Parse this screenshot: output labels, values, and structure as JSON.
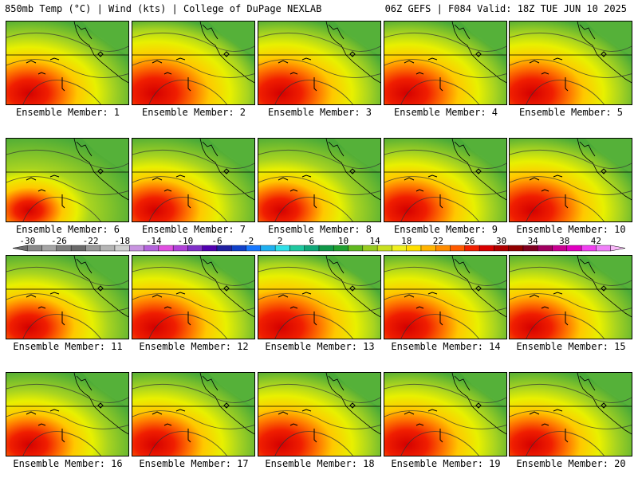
{
  "header": {
    "left": "850mb Temp (°C) | Wind (kts) | College of DuPage NEXLAB",
    "right": "06Z GEFS | F084 Valid: 18Z TUE JUN 10 2025"
  },
  "panels": [
    {
      "label": "Ensemble Member: 1",
      "heat": 0.8
    },
    {
      "label": "Ensemble Member: 2",
      "heat": 0.9
    },
    {
      "label": "Ensemble Member: 3",
      "heat": 0.85
    },
    {
      "label": "Ensemble Member: 4",
      "heat": 0.85
    },
    {
      "label": "Ensemble Member: 5",
      "heat": 0.85
    },
    {
      "label": "Ensemble Member: 6",
      "heat": 0.55
    },
    {
      "label": "Ensemble Member: 7",
      "heat": 0.75
    },
    {
      "label": "Ensemble Member: 8",
      "heat": 0.7
    },
    {
      "label": "Ensemble Member: 9",
      "heat": 0.8
    },
    {
      "label": "Ensemble Member: 10",
      "heat": 0.85
    },
    {
      "label": "Ensemble Member: 11",
      "heat": 0.75
    },
    {
      "label": "Ensemble Member: 12",
      "heat": 0.85
    },
    {
      "label": "Ensemble Member: 13",
      "heat": 0.9
    },
    {
      "label": "Ensemble Member: 14",
      "heat": 0.85
    },
    {
      "label": "Ensemble Member: 15",
      "heat": 0.8
    },
    {
      "label": "Ensemble Member: 16",
      "heat": 0.75
    },
    {
      "label": "Ensemble Member: 17",
      "heat": 0.8
    },
    {
      "label": "Ensemble Member: 18",
      "heat": 0.85
    },
    {
      "label": "Ensemble Member: 19",
      "heat": 0.85
    },
    {
      "label": "Ensemble Member: 20",
      "heat": 0.8
    }
  ],
  "colorbar": {
    "tick_labels": [
      "-30",
      "-26",
      "-22",
      "-18",
      "-14",
      "-10",
      "-6",
      "-2",
      "2",
      "6",
      "10",
      "14",
      "18",
      "22",
      "26",
      "30",
      "34",
      "38",
      "42"
    ],
    "colors": [
      "#6e6e6e",
      "#8a8a8a",
      "#a5a5a5",
      "#7f7f7f",
      "#6a6a6a",
      "#9a9a9a",
      "#b5b5b5",
      "#d0d0d0",
      "#c894e0",
      "#b464dc",
      "#e050e0",
      "#b040d8",
      "#8030c8",
      "#5000b0",
      "#2020a0",
      "#1040c8",
      "#1878ff",
      "#20b0f0",
      "#30e0e8",
      "#20c8a0",
      "#10a878",
      "#109848",
      "#20a030",
      "#60b820",
      "#98cc20",
      "#c8e020",
      "#f0f020",
      "#ffe000",
      "#ffb400",
      "#ff8c00",
      "#ff5a00",
      "#f02000",
      "#d80000",
      "#b00000",
      "#900000",
      "#800020",
      "#a00060",
      "#c80090",
      "#e000c0",
      "#f040f0",
      "#f080f8",
      "#f8b8f8"
    ]
  }
}
